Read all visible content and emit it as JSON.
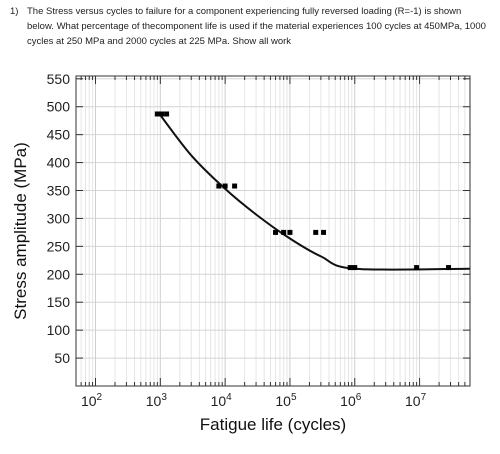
{
  "question": {
    "number": "1)",
    "text": "The Stress versus cycles to failure for a component experiencing fully reversed loading (R=-1) is shown below. What percentage of thecomponent life is used if the material experiences 100 cycles at 450MPa, 1000 cycles at 250 MPa and 2000 cycles at 225 MPa. Show all work"
  },
  "chart_data": {
    "type": "scatter",
    "xscale": "log",
    "xlabel": "Fatigue life (cycles)",
    "ylabel": "Stress amplitude (MPa)",
    "xlim": [
      50,
      60000000
    ],
    "ylim": [
      0,
      555
    ],
    "xticks": [
      100,
      1000,
      10000,
      100000,
      1000000,
      10000000
    ],
    "xtick_labels": [
      {
        "base": "10",
        "exp": "2"
      },
      {
        "base": "10",
        "exp": "3"
      },
      {
        "base": "10",
        "exp": "4"
      },
      {
        "base": "10",
        "exp": "5"
      },
      {
        "base": "10",
        "exp": "6"
      },
      {
        "base": "10",
        "exp": "7"
      }
    ],
    "yticks": [
      50,
      100,
      150,
      200,
      250,
      300,
      350,
      400,
      450,
      500,
      550
    ],
    "ytick_labels": [
      "50",
      "100",
      "150",
      "200",
      "250",
      "300",
      "350",
      "400",
      "450",
      "500",
      "550"
    ],
    "grid": true,
    "points": [
      {
        "x": 900,
        "y": 487
      },
      {
        "x": 1050,
        "y": 487
      },
      {
        "x": 1250,
        "y": 487
      },
      {
        "x": 8000,
        "y": 358
      },
      {
        "x": 10000,
        "y": 358
      },
      {
        "x": 14000,
        "y": 358
      },
      {
        "x": 60000,
        "y": 275
      },
      {
        "x": 80000,
        "y": 275
      },
      {
        "x": 100000,
        "y": 275
      },
      {
        "x": 250000,
        "y": 275
      },
      {
        "x": 330000,
        "y": 275
      },
      {
        "x": 850000,
        "y": 212
      },
      {
        "x": 1000000,
        "y": 212
      },
      {
        "x": 9000000,
        "y": 212
      },
      {
        "x": 28000000,
        "y": 212
      }
    ],
    "fit_curve": [
      {
        "x": 1000,
        "y": 485
      },
      {
        "x": 3000,
        "y": 413
      },
      {
        "x": 10000,
        "y": 353
      },
      {
        "x": 30000,
        "y": 307
      },
      {
        "x": 100000,
        "y": 264
      },
      {
        "x": 300000,
        "y": 232
      },
      {
        "x": 1000000,
        "y": 210
      },
      {
        "x": 60000000,
        "y": 210
      }
    ]
  }
}
